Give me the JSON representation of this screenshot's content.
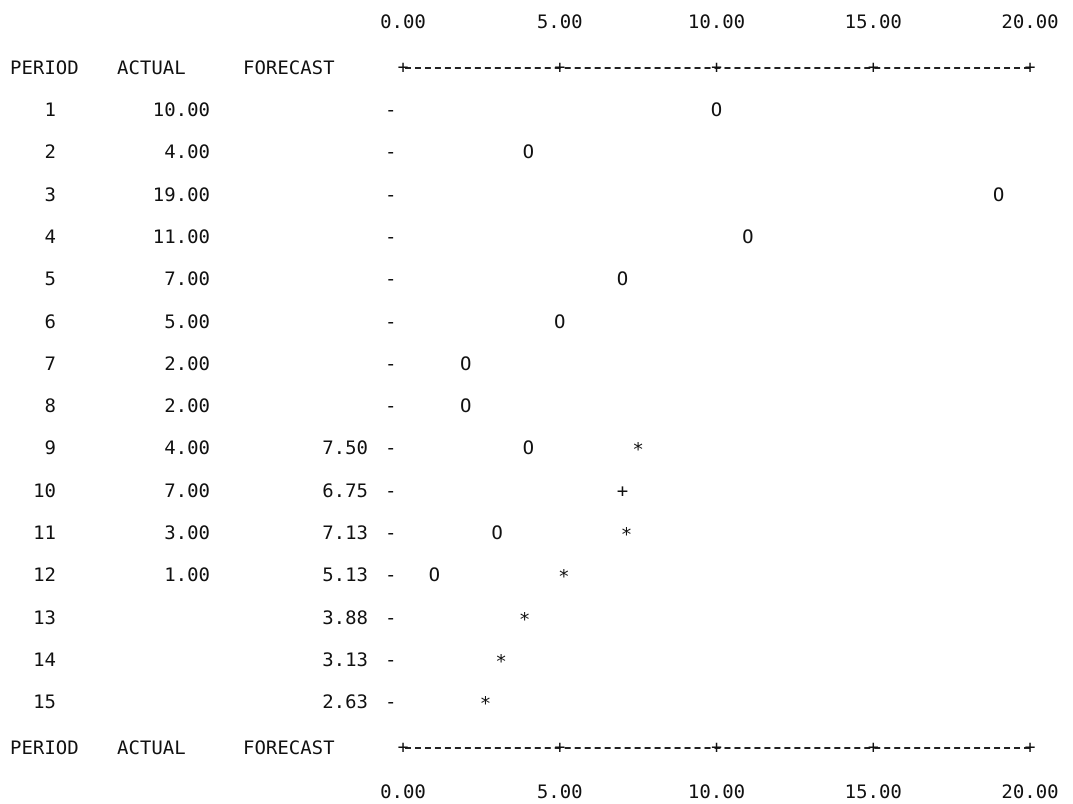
{
  "headers": {
    "period": "PERIOD",
    "actual": "ACTUAL",
    "forecast": "FORECAST"
  },
  "axis": {
    "tick_labels": [
      "0.00",
      "5.00",
      "10.00",
      "15.00",
      "20.00"
    ],
    "tick_char": "+",
    "row_marker": "-",
    "actual_symbol": "O",
    "forecast_symbol": "*",
    "overlap_symbol": "+"
  },
  "chart_data": {
    "type": "scatter",
    "xlim": [
      0,
      20
    ],
    "ticks": [
      0,
      5,
      10,
      15,
      20
    ],
    "rows": [
      {
        "period": "1",
        "actual": "10.00",
        "forecast": "",
        "actual_value": 10.0,
        "forecast_value": null
      },
      {
        "period": "2",
        "actual": "4.00",
        "forecast": "",
        "actual_value": 4.0,
        "forecast_value": null
      },
      {
        "period": "3",
        "actual": "19.00",
        "forecast": "",
        "actual_value": 19.0,
        "forecast_value": null
      },
      {
        "period": "4",
        "actual": "11.00",
        "forecast": "",
        "actual_value": 11.0,
        "forecast_value": null
      },
      {
        "period": "5",
        "actual": "7.00",
        "forecast": "",
        "actual_value": 7.0,
        "forecast_value": null
      },
      {
        "period": "6",
        "actual": "5.00",
        "forecast": "",
        "actual_value": 5.0,
        "forecast_value": null
      },
      {
        "period": "7",
        "actual": "2.00",
        "forecast": "",
        "actual_value": 2.0,
        "forecast_value": null
      },
      {
        "period": "8",
        "actual": "2.00",
        "forecast": "",
        "actual_value": 2.0,
        "forecast_value": null
      },
      {
        "period": "9",
        "actual": "4.00",
        "forecast": "7.50",
        "actual_value": 4.0,
        "forecast_value": 7.5
      },
      {
        "period": "10",
        "actual": "7.00",
        "forecast": "6.75",
        "actual_value": 7.0,
        "forecast_value": 6.75
      },
      {
        "period": "11",
        "actual": "3.00",
        "forecast": "7.13",
        "actual_value": 3.0,
        "forecast_value": 7.13
      },
      {
        "period": "12",
        "actual": "1.00",
        "forecast": "5.13",
        "actual_value": 1.0,
        "forecast_value": 5.13
      },
      {
        "period": "13",
        "actual": "",
        "forecast": "3.88",
        "actual_value": null,
        "forecast_value": 3.88
      },
      {
        "period": "14",
        "actual": "",
        "forecast": "3.13",
        "actual_value": null,
        "forecast_value": 3.13
      },
      {
        "period": "15",
        "actual": "",
        "forecast": "2.63",
        "actual_value": null,
        "forecast_value": 2.63
      }
    ]
  }
}
